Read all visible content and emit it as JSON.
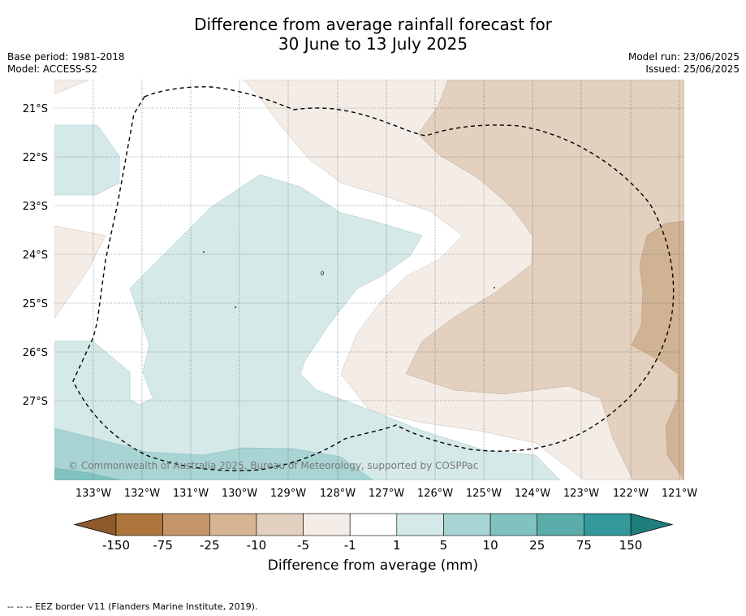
{
  "title": "Difference from average rainfall forecast for\n30 June to 13 July 2025",
  "base_period": "Base period: 1981-2018",
  "model": "Model: ACCESS-S2",
  "model_run": "Model run: 23/06/2025",
  "issued": "Issued: 25/06/2025",
  "lat_labels": [
    "21°S",
    "22°S",
    "23°S",
    "24°S",
    "25°S",
    "26°S",
    "27°S"
  ],
  "lon_labels": [
    "133°W",
    "132°W",
    "131°W",
    "130°W",
    "129°W",
    "128°W",
    "127°W",
    "126°W",
    "125°W",
    "124°W",
    "123°W",
    "122°W",
    "121°W"
  ],
  "copyright": "© Commonwealth of Australia 2025, Bureau of Meteorology, supported by COSPPac",
  "colorbar": {
    "title": "Difference from average (mm)",
    "tick_labels": [
      "-150",
      "-75",
      "-25",
      "-10",
      "-5",
      "-1",
      "1",
      "5",
      "10",
      "25",
      "75",
      "150"
    ],
    "colors": {
      "below_min": "#8c5a2b",
      "c1": "#ae763c",
      "c2": "#c4966a",
      "c3": "#d6b592",
      "c4": "#e3d0be",
      "c5": "#f4ede7",
      "c6": "#ffffff",
      "c7": "#d4e9e8",
      "c8": "#a8d4d3",
      "c9": "#80c2bf",
      "c10": "#5aadaa",
      "c11": "#33999a",
      "above_max": "#1f7d7c"
    }
  },
  "footnote": "--  --  -- EEZ border V11 (Flanders Marine Institute, 2019)."
}
